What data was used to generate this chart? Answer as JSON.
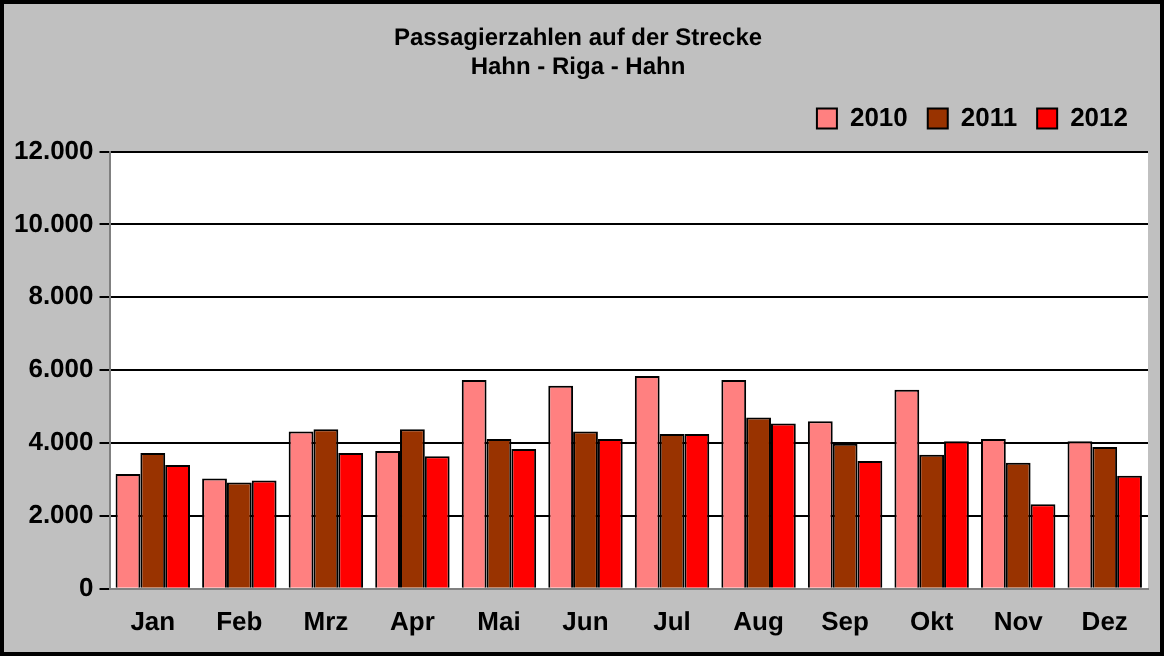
{
  "chart_data": {
    "type": "bar",
    "title": [
      "Passagierzahlen auf der Strecke",
      "Hahn - Riga - Hahn"
    ],
    "categories": [
      "Jan",
      "Feb",
      "Mrz",
      "Apr",
      "Mai",
      "Jun",
      "Jul",
      "Aug",
      "Sep",
      "Okt",
      "Nov",
      "Dez"
    ],
    "series": [
      {
        "name": "2010",
        "color": "#ff8080",
        "values": [
          3150,
          3030,
          4320,
          3780,
          5730,
          5570,
          5840,
          5730,
          4600,
          5460,
          4110,
          4050
        ]
      },
      {
        "name": "2011",
        "color": "#993300",
        "values": [
          3730,
          2920,
          4380,
          4380,
          4110,
          4320,
          4250,
          4700,
          3980,
          3680,
          3460,
          3890
        ]
      },
      {
        "name": "2012",
        "color": "#ff0000",
        "values": [
          3400,
          2970,
          3730,
          3640,
          3840,
          4110,
          4250,
          4540,
          3510,
          4050,
          2320,
          3100
        ]
      }
    ],
    "ylim": [
      0,
      12000
    ],
    "yticks": [
      {
        "value": 0,
        "label": "0"
      },
      {
        "value": 2000,
        "label": "2.000"
      },
      {
        "value": 4000,
        "label": "4.000"
      },
      {
        "value": 6000,
        "label": "6.000"
      },
      {
        "value": 8000,
        "label": "8.000"
      },
      {
        "value": 10000,
        "label": "10.000"
      },
      {
        "value": 12000,
        "label": "12.000"
      }
    ],
    "grid": "y",
    "legend": "top right"
  }
}
